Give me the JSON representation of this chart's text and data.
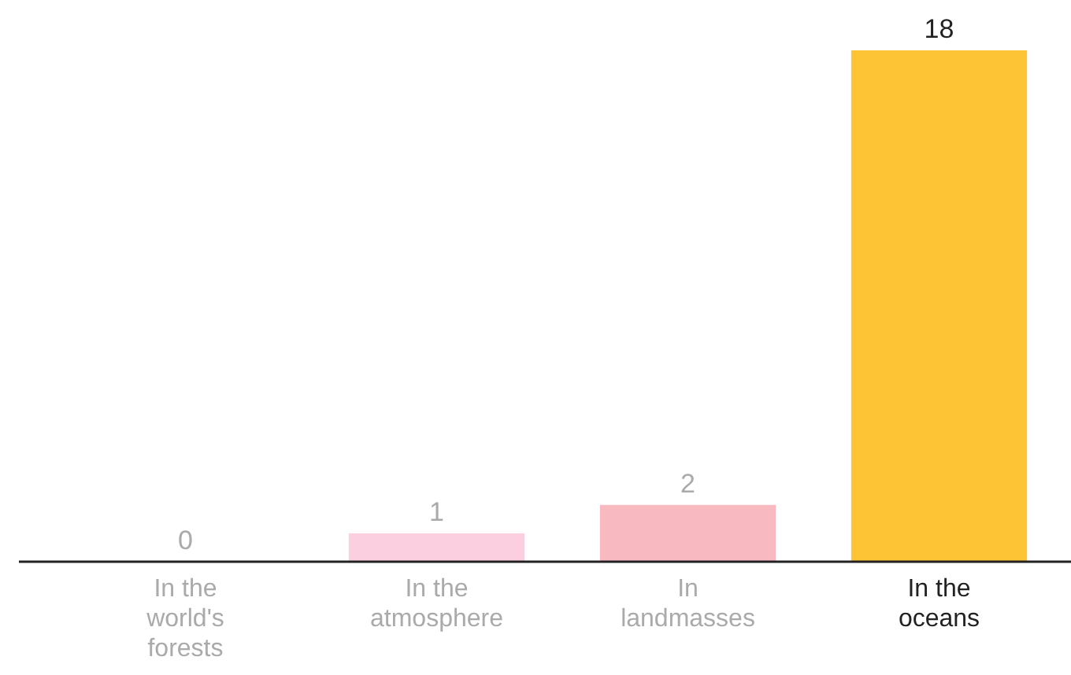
{
  "chart_data": {
    "type": "bar",
    "categories": [
      "In the world's forests",
      "In the atmosphere",
      "In landmasses",
      "In the oceans"
    ],
    "values": [
      0,
      1,
      2,
      18
    ],
    "colors": [
      "#fccfe0",
      "#fccfe0",
      "#f8b9c0",
      "#fdc535"
    ],
    "data_labels": true
  }
}
